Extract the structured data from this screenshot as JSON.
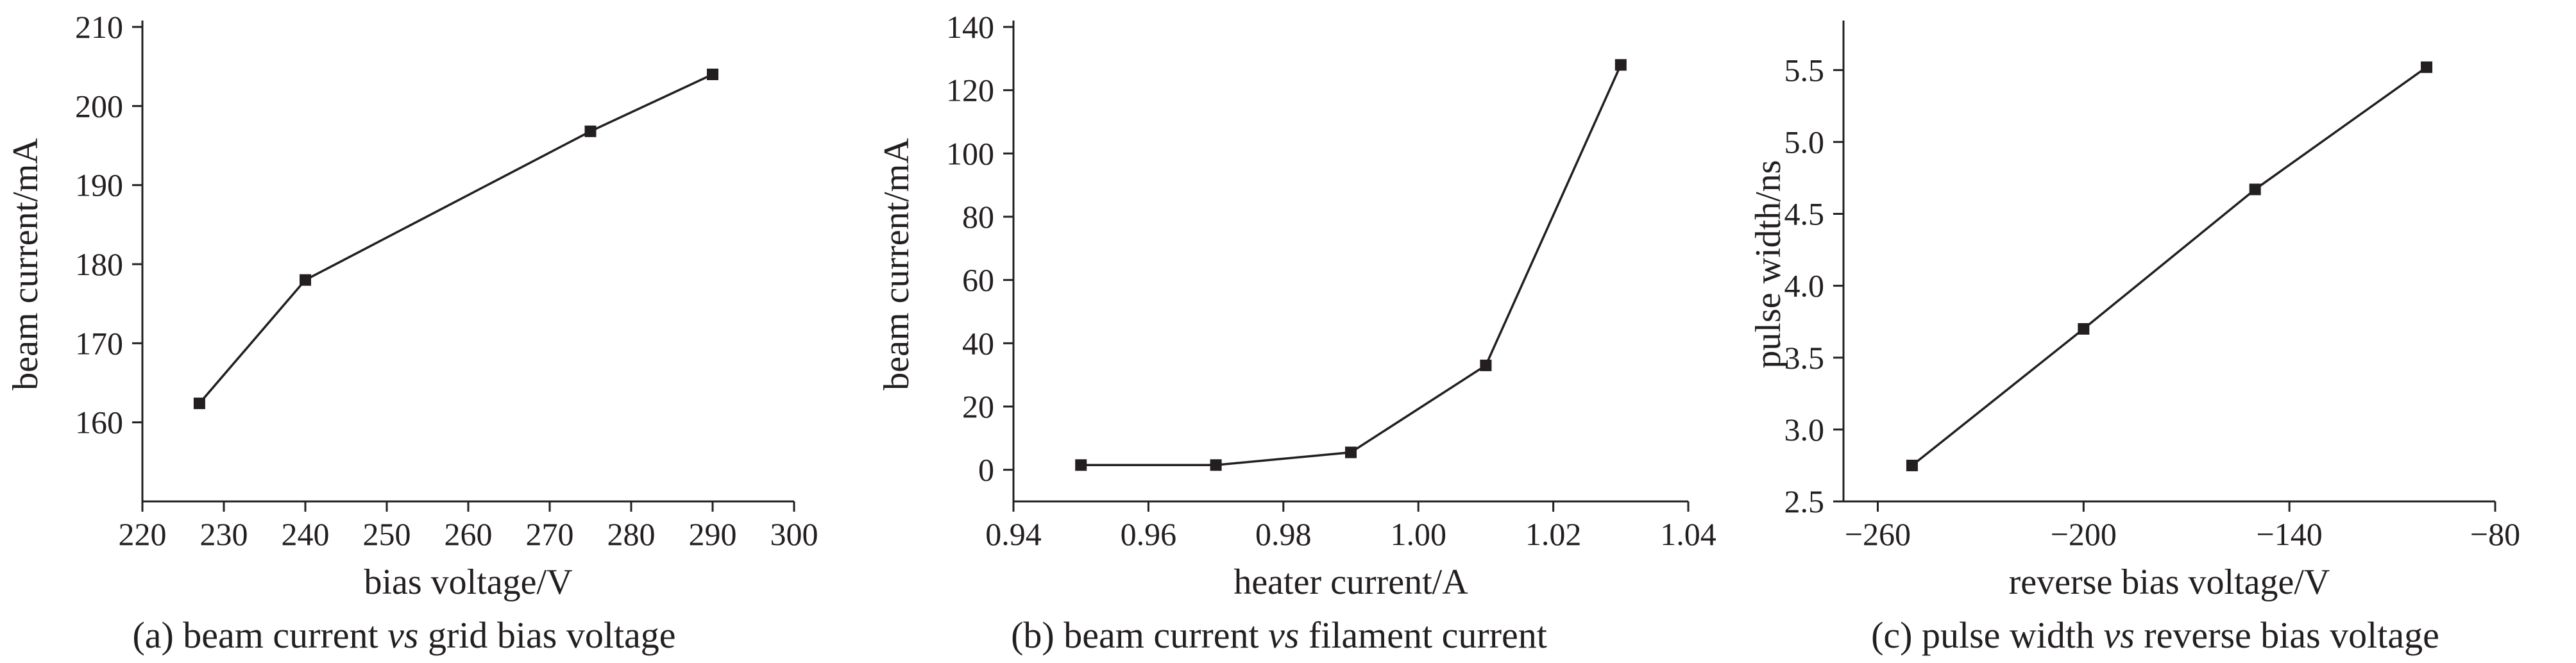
{
  "chart_data": [
    {
      "type": "line",
      "caption": {
        "pre": "(a) beam current ",
        "vs": "vs",
        "post": " grid bias voltage"
      },
      "xlabel": "bias voltage/V",
      "ylabel": "beam current/mA",
      "xlim": [
        220,
        300
      ],
      "ylim": [
        150,
        210
      ],
      "xticks": [
        220,
        230,
        240,
        250,
        260,
        270,
        280,
        290,
        300
      ],
      "yticks": [
        160,
        170,
        180,
        190,
        200,
        210
      ],
      "xtick_labels": [
        "220",
        "230",
        "240",
        "250",
        "260",
        "270",
        "280",
        "290",
        "300"
      ],
      "ytick_labels": [
        "160",
        "170",
        "180",
        "190",
        "200",
        "210"
      ],
      "series": [
        {
          "x": [
            227,
            240,
            275,
            290
          ],
          "y": [
            162.4,
            178,
            196.8,
            204
          ]
        }
      ]
    },
    {
      "type": "line",
      "caption": {
        "pre": "(b) beam current ",
        "vs": "vs",
        "post": " filament current"
      },
      "xlabel": "heater current/A",
      "ylabel": "beam current/mA",
      "xlim": [
        0.94,
        1.04
      ],
      "ylim": [
        -10,
        140
      ],
      "xticks": [
        0.94,
        0.96,
        0.98,
        1.0,
        1.02,
        1.04
      ],
      "yticks": [
        0,
        20,
        40,
        60,
        80,
        100,
        120,
        140
      ],
      "xtick_labels": [
        "0.94",
        "0.96",
        "0.98",
        "1.00",
        "1.02",
        "1.04"
      ],
      "ytick_labels": [
        "0",
        "20",
        "40",
        "60",
        "80",
        "100",
        "120",
        "140"
      ],
      "series": [
        {
          "x": [
            0.95,
            0.97,
            0.99,
            1.01,
            1.03
          ],
          "y": [
            1.5,
            1.5,
            5.5,
            33,
            128
          ]
        }
      ]
    },
    {
      "type": "line",
      "caption": {
        "pre": "(c) pulse width ",
        "vs": "vs",
        "post": " reverse bias voltage"
      },
      "xlabel": "reverse bias voltage/V",
      "ylabel": "pulse width/ns",
      "xlim": [
        -270,
        -80
      ],
      "ylim": [
        2.5,
        5.8
      ],
      "xticks": [
        -260,
        -200,
        -140,
        -80
      ],
      "yticks": [
        2.5,
        3.0,
        3.5,
        4.0,
        4.5,
        5.0,
        5.5
      ],
      "xtick_labels": [
        "−260",
        "−200",
        "−140",
        "−80"
      ],
      "ytick_labels": [
        "2.5",
        "3.0",
        "3.5",
        "4.0",
        "4.5",
        "5.0",
        "5.5"
      ],
      "series": [
        {
          "x": [
            -250,
            -200,
            -150,
            -100
          ],
          "y": [
            2.75,
            3.7,
            4.67,
            5.52
          ]
        }
      ]
    }
  ]
}
